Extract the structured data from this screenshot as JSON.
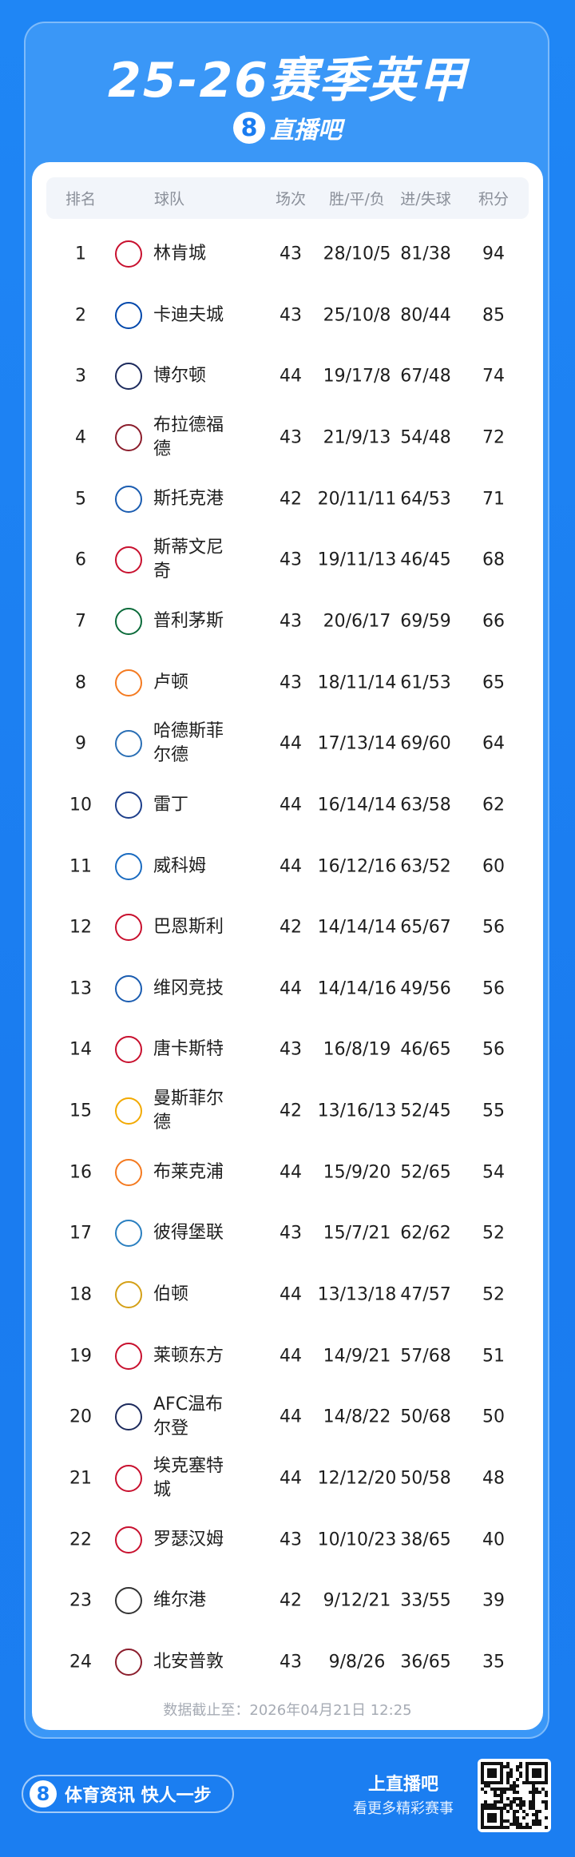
{
  "header": {
    "title": "25-26赛季英甲",
    "logo_mark": "8",
    "brand": "直播吧"
  },
  "table": {
    "columns": [
      "排名",
      "球队",
      "场次",
      "胜/平/负",
      "进/失球",
      "积分"
    ],
    "rows": [
      [
        "1",
        "林肯城",
        "43",
        "28/10/5",
        "81/38",
        "94"
      ],
      [
        "2",
        "卡迪夫城",
        "43",
        "25/10/8",
        "80/44",
        "85"
      ],
      [
        "3",
        "博尔顿",
        "44",
        "19/17/8",
        "67/48",
        "74"
      ],
      [
        "4",
        "布拉德福德",
        "43",
        "21/9/13",
        "54/48",
        "72"
      ],
      [
        "5",
        "斯托克港",
        "42",
        "20/11/11",
        "64/53",
        "71"
      ],
      [
        "6",
        "斯蒂文尼奇",
        "43",
        "19/11/13",
        "46/45",
        "68"
      ],
      [
        "7",
        "普利茅斯",
        "43",
        "20/6/17",
        "69/59",
        "66"
      ],
      [
        "8",
        "卢顿",
        "43",
        "18/11/14",
        "61/53",
        "65"
      ],
      [
        "9",
        "哈德斯菲尔德",
        "44",
        "17/13/14",
        "69/60",
        "64"
      ],
      [
        "10",
        "雷丁",
        "44",
        "16/14/14",
        "63/58",
        "62"
      ],
      [
        "11",
        "威科姆",
        "44",
        "16/12/16",
        "63/52",
        "60"
      ],
      [
        "12",
        "巴恩斯利",
        "42",
        "14/14/14",
        "65/67",
        "56"
      ],
      [
        "13",
        "维冈竞技",
        "44",
        "14/14/16",
        "49/56",
        "56"
      ],
      [
        "14",
        "唐卡斯特",
        "43",
        "16/8/19",
        "46/65",
        "56"
      ],
      [
        "15",
        "曼斯菲尔德",
        "42",
        "13/16/13",
        "52/45",
        "55"
      ],
      [
        "16",
        "布莱克浦",
        "44",
        "15/9/20",
        "52/65",
        "54"
      ],
      [
        "17",
        "彼得堡联",
        "43",
        "15/7/21",
        "62/62",
        "52"
      ],
      [
        "18",
        "伯顿",
        "44",
        "13/13/18",
        "47/57",
        "52"
      ],
      [
        "19",
        "莱顿东方",
        "44",
        "14/9/21",
        "57/68",
        "51"
      ],
      [
        "20",
        "AFC温布尔登",
        "44",
        "14/8/22",
        "50/68",
        "50"
      ],
      [
        "21",
        "埃克塞特城",
        "44",
        "12/12/20",
        "50/58",
        "48"
      ],
      [
        "22",
        "罗瑟汉姆",
        "43",
        "10/10/23",
        "38/65",
        "40"
      ],
      [
        "23",
        "维尔港",
        "42",
        "9/12/21",
        "33/55",
        "39"
      ],
      [
        "24",
        "北安普敦",
        "43",
        "9/8/26",
        "36/65",
        "35"
      ]
    ]
  },
  "footer": "数据截止至：2026年04月21日 12:25",
  "bottom": {
    "slogan": "体育资讯 快人一步",
    "cta": "上直播吧",
    "cta_sub": "看更多精彩赛事"
  }
}
